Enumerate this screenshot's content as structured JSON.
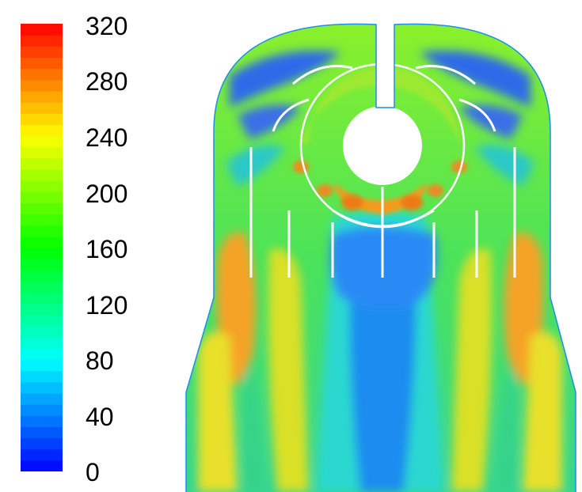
{
  "chart_data": {
    "type": "heatmap",
    "colorbar": {
      "min": 0,
      "max": 320,
      "ticks": [
        "320",
        "280",
        "240",
        "200",
        "160",
        "120",
        "80",
        "40",
        "0"
      ],
      "tick_values": [
        320,
        280,
        240,
        200,
        160,
        120,
        80,
        40,
        0
      ],
      "levels": 40,
      "colormap": "rainbow (blue-cyan-green-yellow-red)"
    }
  }
}
